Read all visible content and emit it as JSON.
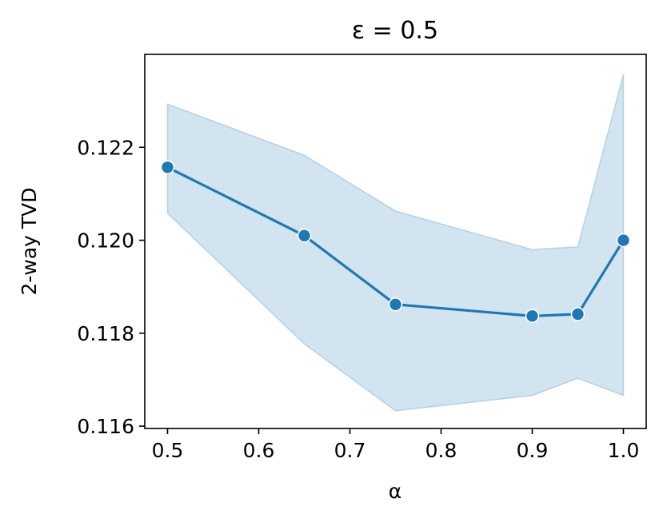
{
  "chart_data": {
    "type": "line",
    "title": "ε = 0.5",
    "xlabel": "α",
    "ylabel": "2-way TVD",
    "xlim": [
      0.475,
      1.025
    ],
    "ylim": [
      0.11595,
      0.124
    ],
    "x_ticks": [
      0.5,
      0.6,
      0.7,
      0.8,
      0.9,
      1.0
    ],
    "x_tick_labels": [
      "0.5",
      "0.6",
      "0.7",
      "0.8",
      "0.9",
      "1.0"
    ],
    "y_ticks": [
      0.116,
      0.118,
      0.12,
      0.122
    ],
    "y_tick_labels": [
      "0.116",
      "0.118",
      "0.120",
      "0.122"
    ],
    "grid": false,
    "legend": "none",
    "series": [
      {
        "x": [
          0.5,
          0.65,
          0.75,
          0.9,
          0.95,
          1.0
        ],
        "y": [
          0.12157,
          0.1201,
          0.11862,
          0.11837,
          0.11841,
          0.12
        ],
        "ci_lower": [
          0.12058,
          0.11777,
          0.11633,
          0.11666,
          0.11703,
          0.11666
        ],
        "ci_upper": [
          0.12293,
          0.12183,
          0.12063,
          0.1198,
          0.11986,
          0.12357
        ],
        "color": "#1f77b4",
        "band_color": "#1f77b4",
        "marker": "circle"
      }
    ]
  }
}
